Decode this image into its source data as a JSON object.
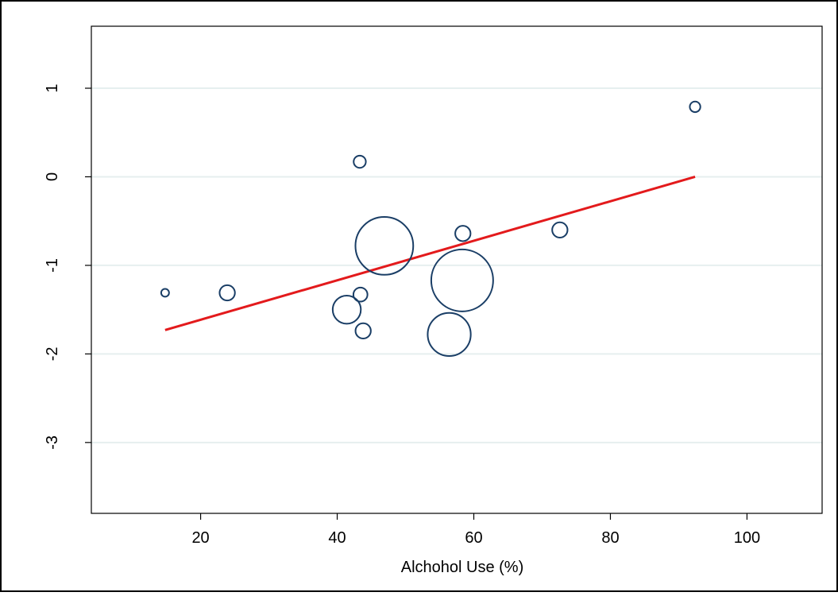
{
  "chart_data": {
    "type": "scatter",
    "title": "",
    "xlabel": "Alchohol Use (%)",
    "ylabel": "",
    "xlim": [
      4,
      111
    ],
    "ylim": [
      -3.8,
      1.7
    ],
    "x_ticks": [
      20,
      40,
      60,
      80,
      100
    ],
    "y_ticks": [
      1,
      0,
      -1,
      -2,
      -3
    ],
    "grid": "horizontal",
    "colors": {
      "marker": "#1a3e66",
      "fit_line": "#e31a1c",
      "grid": "#e6efef",
      "frame": "#000000"
    },
    "series": [
      {
        "marker": "hollow-circle",
        "points": [
          {
            "x": 14.8,
            "y": -1.31,
            "w": 0.5
          },
          {
            "x": 23.9,
            "y": -1.31,
            "w": 1.9
          },
          {
            "x": 41.4,
            "y": -1.5,
            "w": 6.4
          },
          {
            "x": 43.3,
            "y": 0.17,
            "w": 1.2
          },
          {
            "x": 43.4,
            "y": -1.33,
            "w": 1.6
          },
          {
            "x": 43.8,
            "y": -1.74,
            "w": 1.9
          },
          {
            "x": 46.9,
            "y": -0.78,
            "w": 27.0
          },
          {
            "x": 56.4,
            "y": -1.78,
            "w": 15.0
          },
          {
            "x": 58.3,
            "y": -1.17,
            "w": 31.0
          },
          {
            "x": 58.4,
            "y": -0.64,
            "w": 1.9
          },
          {
            "x": 72.6,
            "y": -0.6,
            "w": 1.9
          },
          {
            "x": 92.4,
            "y": 0.79,
            "w": 0.9
          }
        ]
      }
    ],
    "fit_line": {
      "x": [
        14.8,
        92.4
      ],
      "y": [
        -1.73,
        0.0
      ]
    }
  }
}
